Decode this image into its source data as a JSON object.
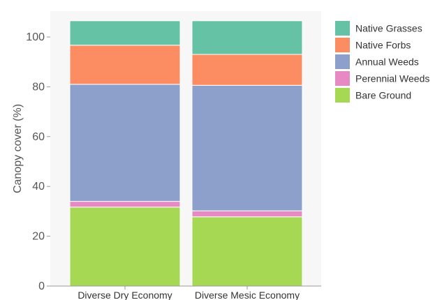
{
  "chart_data": {
    "type": "bar",
    "stacked": true,
    "categories": [
      "Diverse Dry Economy",
      "Diverse Mesic Economy"
    ],
    "series": [
      {
        "name": "Bare Ground",
        "color": "#a6d854",
        "values": [
          31.7,
          27.8
        ]
      },
      {
        "name": "Perennial Weeds",
        "color": "#e78ac3",
        "values": [
          2.3,
          2.4
        ]
      },
      {
        "name": "Annual Weeds",
        "color": "#8da0cb",
        "values": [
          47.0,
          50.4
        ]
      },
      {
        "name": "Native Forbs",
        "color": "#fc8d62",
        "values": [
          15.7,
          12.4
        ]
      },
      {
        "name": "Native Grasses",
        "color": "#66c2a5",
        "values": [
          9.8,
          13.5
        ]
      }
    ],
    "legend_order": [
      "Native Grasses",
      "Native Forbs",
      "Annual Weeds",
      "Perennial Weeds",
      "Bare Ground"
    ],
    "xlabel": "",
    "ylabel": "Canopy cover (%)",
    "ylim": [
      0,
      110
    ],
    "yticks": [
      0,
      20,
      40,
      60,
      80,
      100
    ],
    "legend_position": "right",
    "background": "#f7f7f7"
  }
}
